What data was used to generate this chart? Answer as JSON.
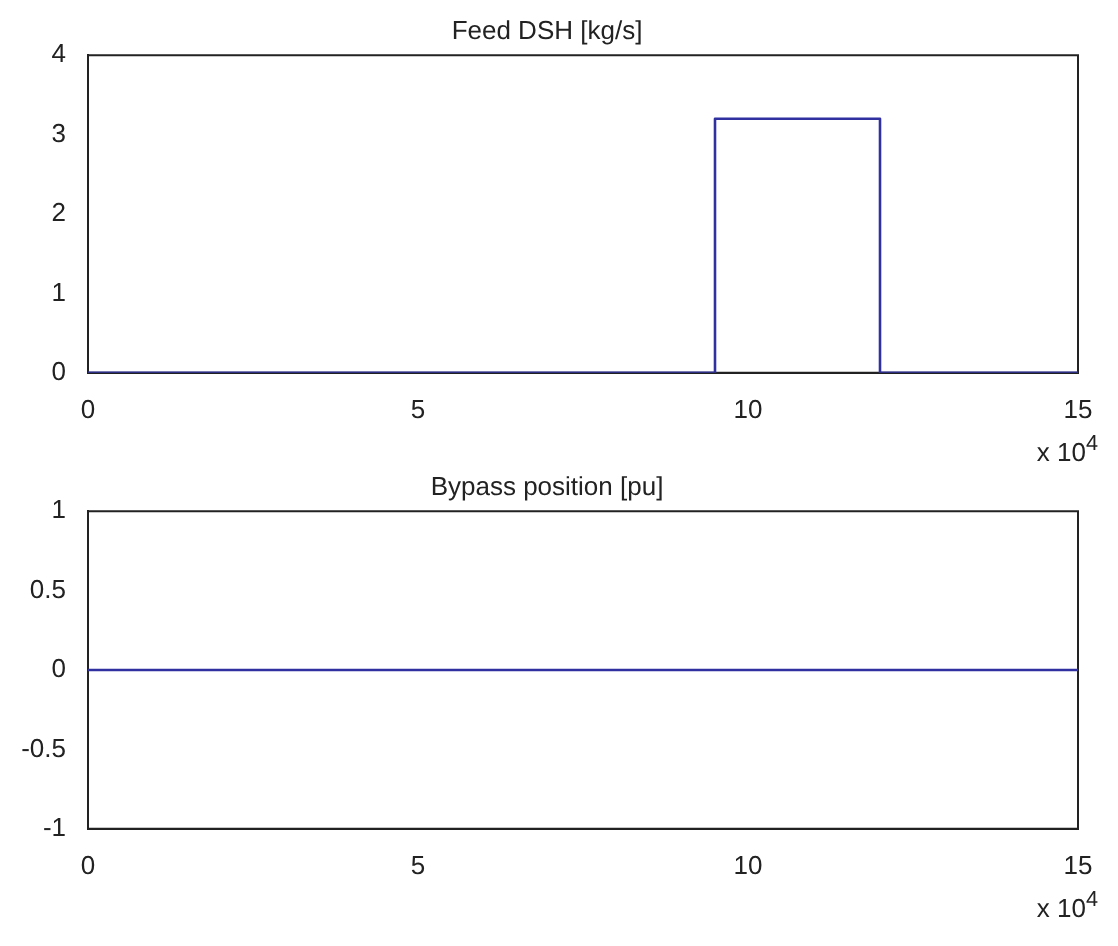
{
  "chart_data": [
    {
      "type": "line",
      "title": "Feed DSH [kg/s]",
      "x": [
        0,
        9.5,
        9.5,
        12,
        12,
        15
      ],
      "series": [
        {
          "color": "#3030a0",
          "values": [
            0,
            0,
            3.2,
            3.2,
            0,
            0
          ]
        }
      ],
      "xlim": [
        0,
        15
      ],
      "xticks": [
        0,
        5,
        10,
        15
      ],
      "ylim": [
        0,
        4
      ],
      "yticks": [
        0,
        1,
        2,
        3,
        4
      ],
      "grid": false,
      "legend": false,
      "marker": "none",
      "line_style": "solid",
      "annotations": [
        "x 10$^{4}$"
      ]
    },
    {
      "type": "line",
      "title": "Bypass position [pu]",
      "x": [
        0,
        15
      ],
      "series": [
        {
          "color": "#3030a0",
          "values": [
            0,
            0
          ]
        }
      ],
      "xlim": [
        0,
        15
      ],
      "xticks": [
        0,
        5,
        10,
        15
      ],
      "ylim": [
        -1,
        1
      ],
      "yticks": [
        -1,
        -0.5,
        0,
        0.5,
        1
      ],
      "grid": false,
      "legend": false,
      "marker": "none",
      "line_style": "solid",
      "annotations": [
        "x 10$^{4}$"
      ]
    }
  ]
}
